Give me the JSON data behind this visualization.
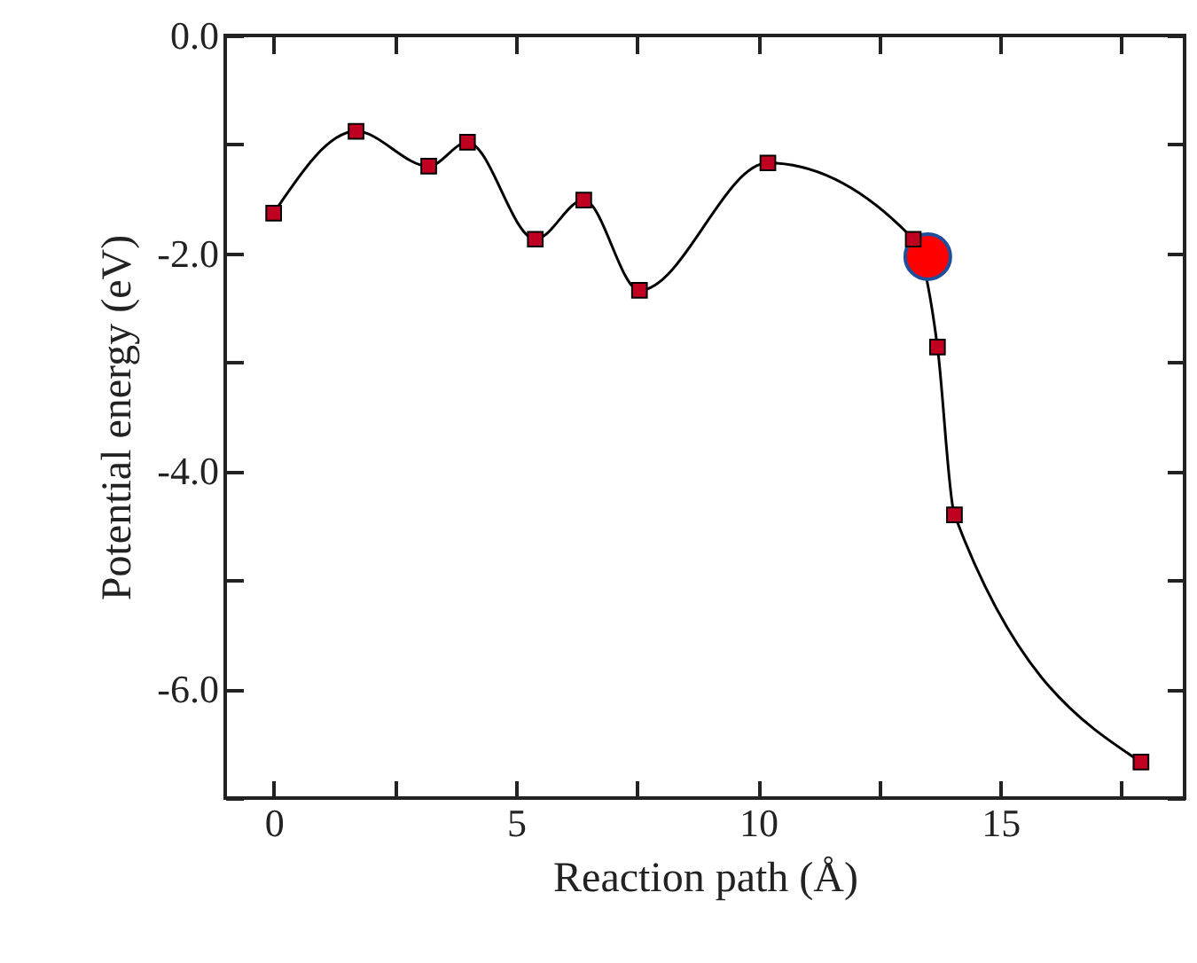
{
  "chart_data": {
    "type": "line",
    "xlabel": "Reaction path (Å)",
    "ylabel": "Potential energy (eV)",
    "xlim": [
      -1,
      18.8
    ],
    "ylim": [
      -7,
      0
    ],
    "xticks": [
      0,
      {
        "value": 2.5,
        "label": null
      },
      5,
      {
        "value": 7.5,
        "label": null
      },
      10,
      {
        "value": 12.5,
        "label": null
      },
      15,
      {
        "value": 17.5,
        "label": null
      }
    ],
    "yticks": [
      {
        "value": -7,
        "label": null
      },
      {
        "value": -6,
        "label": "-6.0"
      },
      {
        "value": -5,
        "label": null
      },
      {
        "value": -4,
        "label": "-4.0"
      },
      {
        "value": -3,
        "label": null
      },
      {
        "value": -2,
        "label": "-2.0"
      },
      {
        "value": -1,
        "label": null
      },
      {
        "value": 0,
        "label": "0.0"
      }
    ],
    "grid": false,
    "series": [
      {
        "type": "line",
        "color": "#000000",
        "marker": "none",
        "line_style": "solid",
        "x": [
          0,
          1.7,
          3.2,
          4.0,
          5.4,
          6.4,
          7.55,
          10.2,
          13.2,
          13.7,
          14.05,
          17.9
        ],
        "values": [
          -1.63,
          -0.88,
          -1.2,
          -0.98,
          -1.87,
          -1.51,
          -2.34,
          -1.17,
          -1.87,
          -2.86,
          -4.4,
          -6.67
        ]
      },
      {
        "type": "scatter",
        "color": "#c00020",
        "marker": "square",
        "x": [
          0,
          1.7,
          3.2,
          4.0,
          5.4,
          6.4,
          7.55,
          10.2,
          13.2,
          13.7,
          14.05,
          17.9
        ],
        "values": [
          -1.63,
          -0.88,
          -1.2,
          -0.98,
          -1.87,
          -1.51,
          -2.34,
          -1.17,
          -1.87,
          -2.86,
          -4.4,
          -6.67
        ]
      },
      {
        "type": "scatter",
        "color": "#ff0000",
        "marker": "circle",
        "x": [
          13.5
        ],
        "values": [
          -2.03
        ]
      }
    ]
  }
}
